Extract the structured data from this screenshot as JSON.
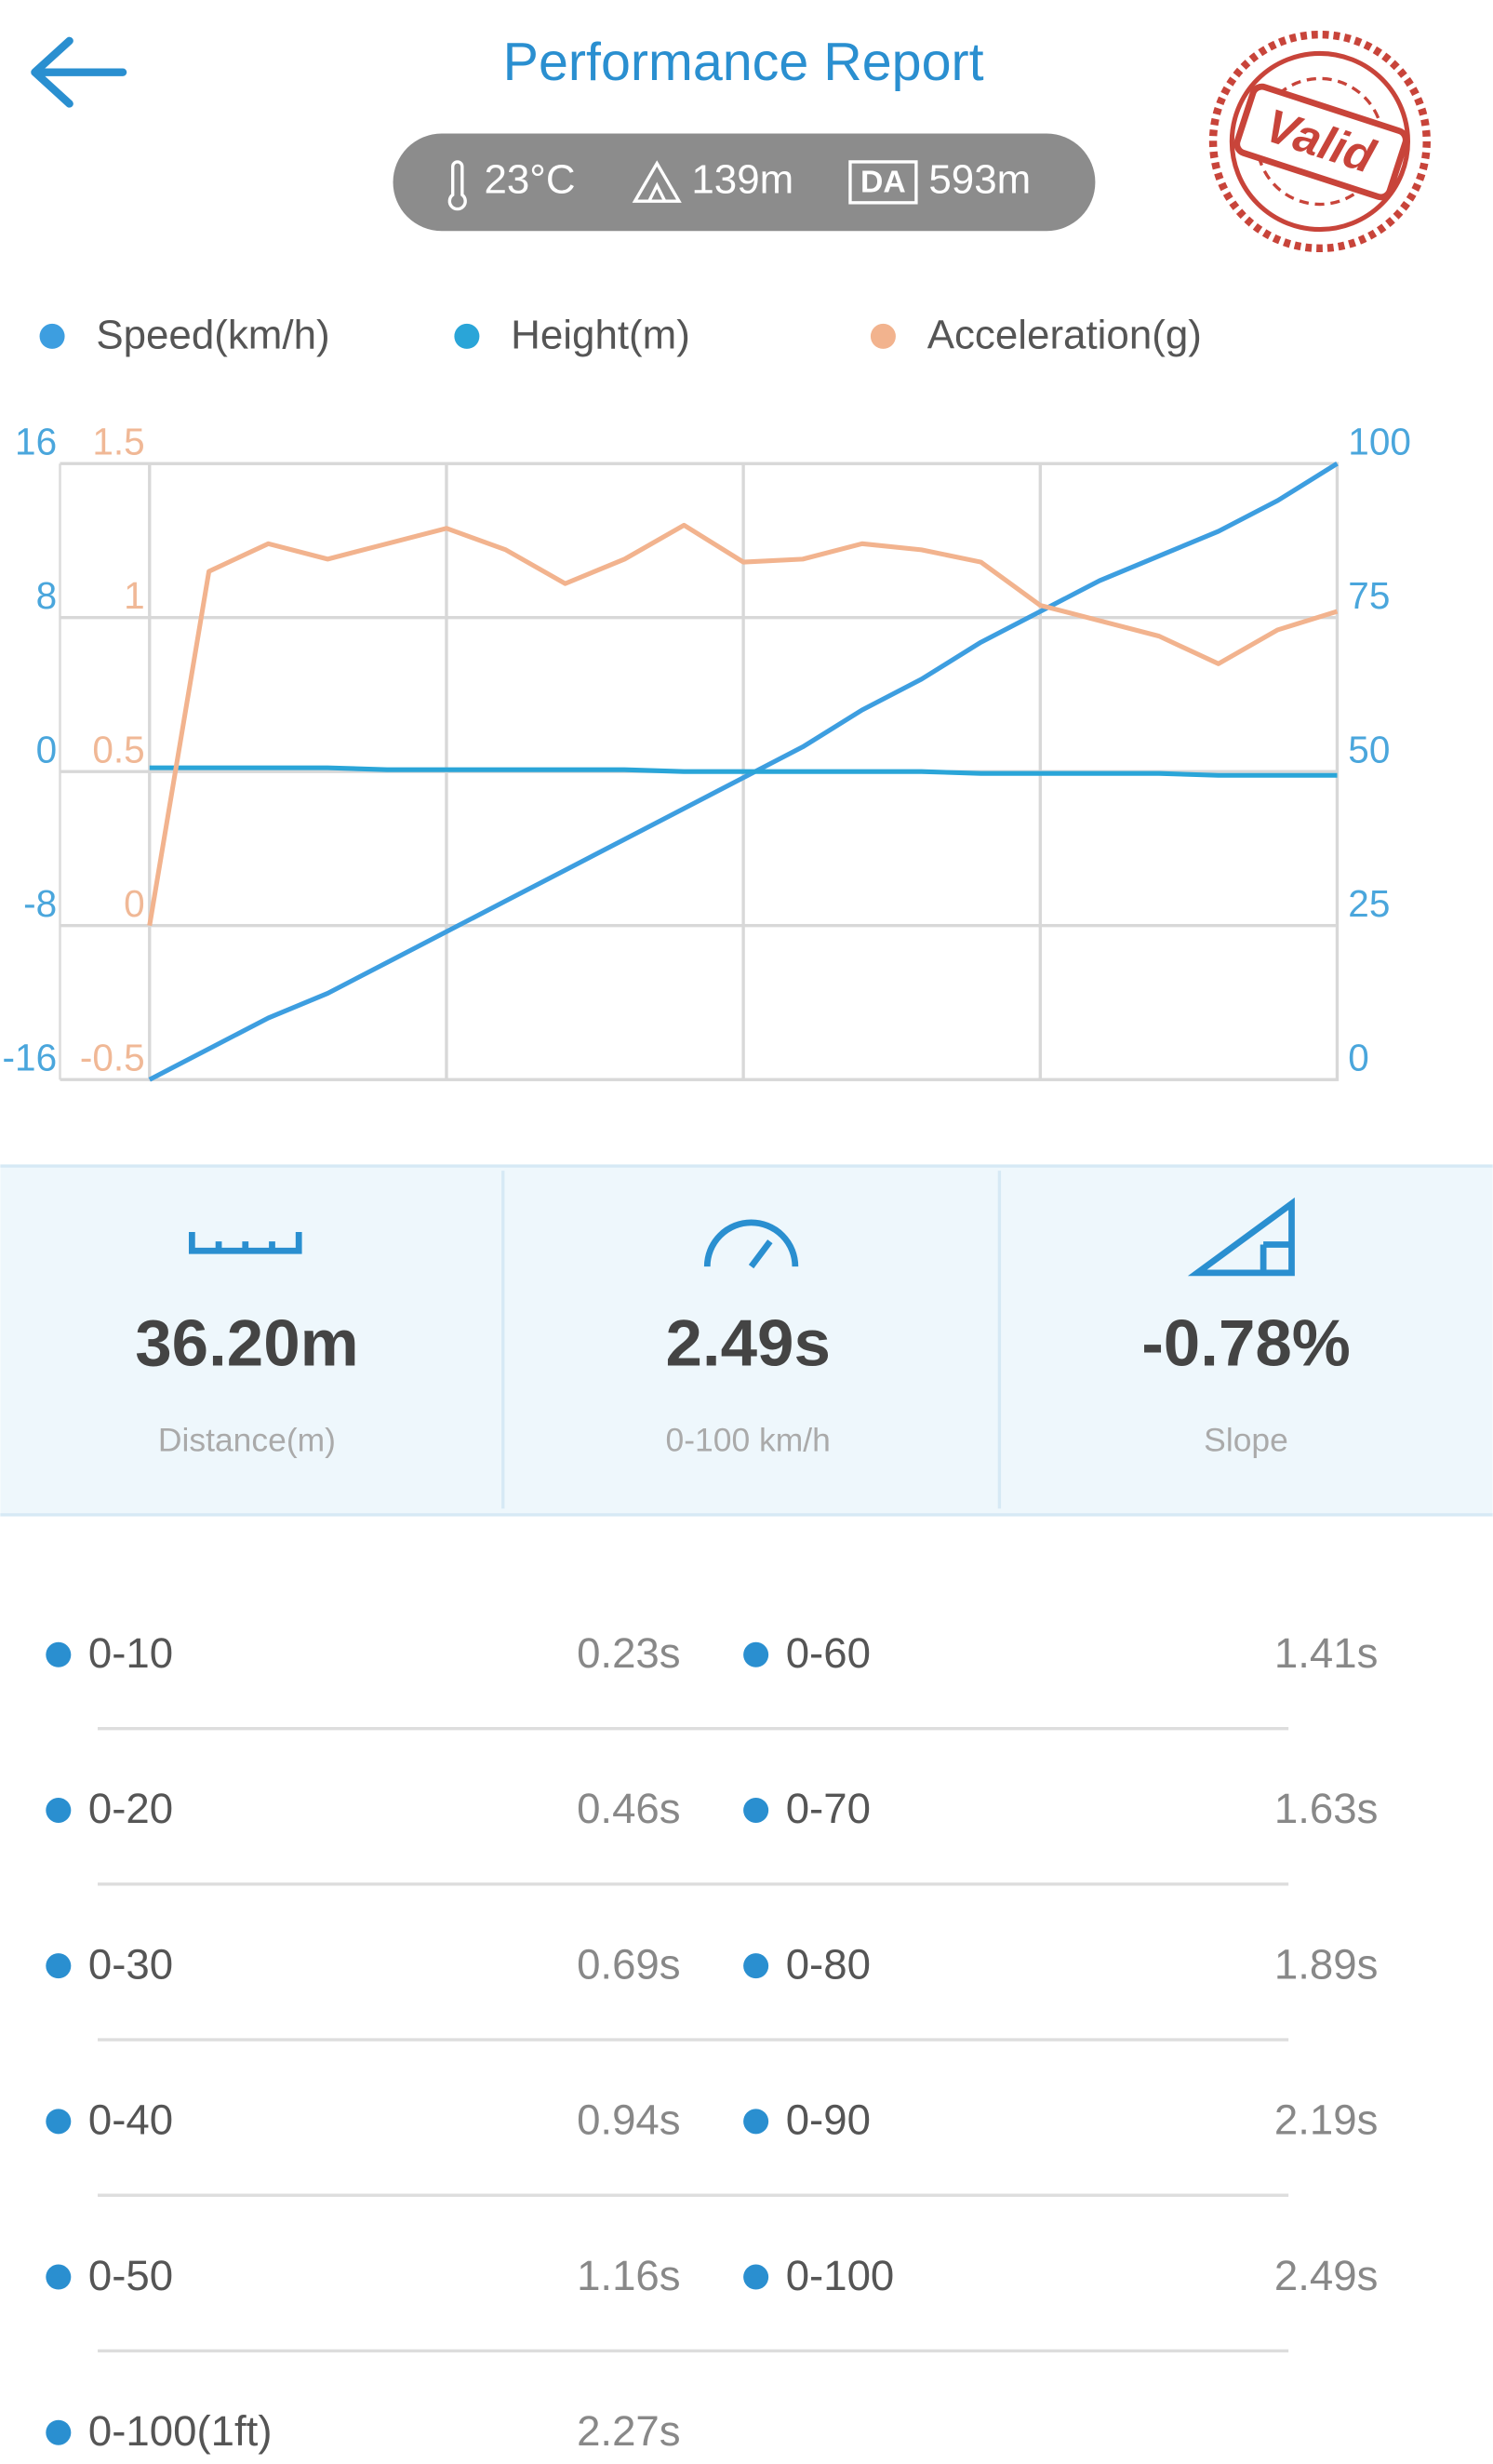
{
  "header": {
    "title": "Performance Report",
    "temperature": "23°C",
    "altitude": "139m",
    "da_badge": "DA",
    "density_altitude": "593m",
    "stamp": "Valid"
  },
  "chart_data": {
    "type": "line",
    "categories": [
      null,
      null,
      null,
      null,
      null,
      null,
      null,
      null,
      null,
      null,
      null,
      null,
      null,
      null,
      null,
      null,
      null,
      null,
      null,
      null,
      null
    ],
    "series": [
      {
        "name": "Speed(km/h)",
        "color": "#3d9ee0",
        "axis": "y2",
        "values": [
          0,
          5,
          10,
          14,
          19,
          24,
          29,
          34,
          39,
          44,
          49,
          54,
          60,
          65,
          71,
          76,
          81,
          85,
          89,
          94,
          100
        ]
      },
      {
        "name": "Height(m)",
        "color": "#2aa5d8",
        "axis": "y",
        "values": [
          0.2,
          0.2,
          0.2,
          0.2,
          0.1,
          0.1,
          0.1,
          0.1,
          0.1,
          0,
          0,
          0,
          0,
          0,
          -0.1,
          -0.1,
          -0.1,
          -0.1,
          -0.2,
          -0.2,
          -0.2
        ]
      },
      {
        "name": "Acceleration(g)",
        "color": "#f2b38e",
        "axis": "y3",
        "values": [
          0,
          1.15,
          1.24,
          1.19,
          1.24,
          1.29,
          1.22,
          1.11,
          1.19,
          1.3,
          1.18,
          1.19,
          1.24,
          1.22,
          1.18,
          1.04,
          0.99,
          0.94,
          0.85,
          0.96,
          1.02
        ]
      }
    ],
    "ylim": [
      -16,
      16
    ],
    "yticks": [
      -16,
      -8,
      0,
      8,
      16
    ],
    "y3lim": [
      -0.5,
      1.5
    ],
    "y3ticks": [
      -0.5,
      0,
      0.5,
      1,
      1.5
    ],
    "y2lim": [
      0,
      100
    ],
    "y2ticks": [
      0,
      25,
      50,
      75,
      100
    ],
    "grid": true,
    "legend": "top"
  },
  "stats": [
    {
      "value": "36.20m",
      "label": "Distance(m)"
    },
    {
      "value": "2.49s",
      "label": "0-100 km/h"
    },
    {
      "value": "-0.78%",
      "label": "Slope"
    }
  ],
  "splits": [
    {
      "label": "0-10",
      "time": "0.23s"
    },
    {
      "label": "0-60",
      "time": "1.41s"
    },
    {
      "label": "0-20",
      "time": "0.46s"
    },
    {
      "label": "0-70",
      "time": "1.63s"
    },
    {
      "label": "0-30",
      "time": "0.69s"
    },
    {
      "label": "0-80",
      "time": "1.89s"
    },
    {
      "label": "0-40",
      "time": "0.94s"
    },
    {
      "label": "0-90",
      "time": "2.19s"
    },
    {
      "label": "0-50",
      "time": "1.16s"
    },
    {
      "label": "0-100",
      "time": "2.49s"
    },
    {
      "label": "0-100(1ft)",
      "time": "2.27s"
    }
  ]
}
